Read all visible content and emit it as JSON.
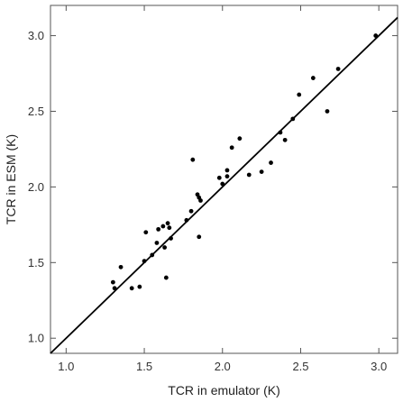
{
  "chart_data": {
    "type": "scatter",
    "xlabel": "TCR in emulator (K)",
    "ylabel": "TCR in ESM (K)",
    "xlim": [
      0.9,
      3.12
    ],
    "ylim": [
      0.9,
      3.2
    ],
    "xticks": [
      1.0,
      1.5,
      2.0,
      2.5,
      3.0
    ],
    "yticks": [
      1.0,
      1.5,
      2.0,
      2.5,
      3.0
    ],
    "xtick_labels": [
      "1.0",
      "1.5",
      "2.0",
      "2.5",
      "3.0"
    ],
    "ytick_labels": [
      "1.0",
      "1.5",
      "2.0",
      "2.5",
      "3.0"
    ],
    "grid": false,
    "reference_line": {
      "slope": 1,
      "intercept": 0
    },
    "points": [
      {
        "x": 1.3,
        "y": 1.37
      },
      {
        "x": 1.31,
        "y": 1.33
      },
      {
        "x": 1.35,
        "y": 1.47
      },
      {
        "x": 1.42,
        "y": 1.33
      },
      {
        "x": 1.47,
        "y": 1.34
      },
      {
        "x": 1.5,
        "y": 1.51
      },
      {
        "x": 1.51,
        "y": 1.7
      },
      {
        "x": 1.55,
        "y": 1.55
      },
      {
        "x": 1.58,
        "y": 1.63
      },
      {
        "x": 1.59,
        "y": 1.72
      },
      {
        "x": 1.62,
        "y": 1.74
      },
      {
        "x": 1.63,
        "y": 1.6
      },
      {
        "x": 1.65,
        "y": 1.76
      },
      {
        "x": 1.66,
        "y": 1.73
      },
      {
        "x": 1.67,
        "y": 1.66
      },
      {
        "x": 1.64,
        "y": 1.4
      },
      {
        "x": 1.77,
        "y": 1.78
      },
      {
        "x": 1.8,
        "y": 1.84
      },
      {
        "x": 1.81,
        "y": 2.18
      },
      {
        "x": 1.84,
        "y": 1.95
      },
      {
        "x": 1.85,
        "y": 1.93
      },
      {
        "x": 1.86,
        "y": 1.91
      },
      {
        "x": 1.85,
        "y": 1.67
      },
      {
        "x": 1.98,
        "y": 2.06
      },
      {
        "x": 2.0,
        "y": 2.02
      },
      {
        "x": 2.03,
        "y": 2.07
      },
      {
        "x": 2.03,
        "y": 2.11
      },
      {
        "x": 2.06,
        "y": 2.26
      },
      {
        "x": 2.11,
        "y": 2.32
      },
      {
        "x": 2.17,
        "y": 2.08
      },
      {
        "x": 2.25,
        "y": 2.1
      },
      {
        "x": 2.31,
        "y": 2.16
      },
      {
        "x": 2.37,
        "y": 2.36
      },
      {
        "x": 2.4,
        "y": 2.31
      },
      {
        "x": 2.45,
        "y": 2.45
      },
      {
        "x": 2.49,
        "y": 2.61
      },
      {
        "x": 2.58,
        "y": 2.72
      },
      {
        "x": 2.67,
        "y": 2.5
      },
      {
        "x": 2.74,
        "y": 2.78
      },
      {
        "x": 2.98,
        "y": 3.0
      }
    ]
  }
}
